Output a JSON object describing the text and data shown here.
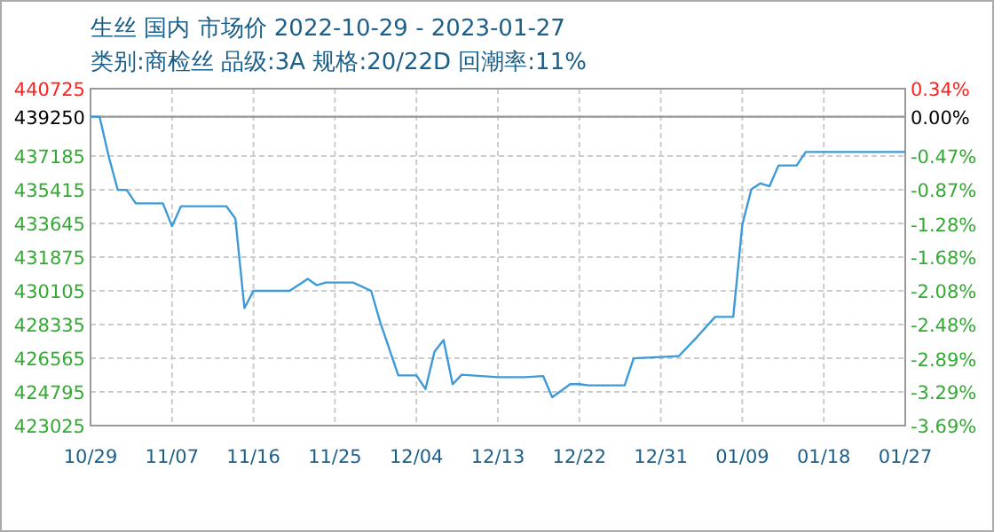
{
  "chart_data": {
    "type": "line",
    "title": "生丝 国内 市场价 2022-10-29 - 2023-01-27",
    "subtitle": "类别:商检丝 品级:3A 规格:20/22D 回潮率:11%",
    "x": [
      "2022-10-29",
      "2022-10-30",
      "2022-10-31",
      "2022-11-01",
      "2022-11-02",
      "2022-11-03",
      "2022-11-06",
      "2022-11-07",
      "2022-11-08",
      "2022-11-13",
      "2022-11-14",
      "2022-11-15",
      "2022-11-16",
      "2022-11-20",
      "2022-11-22",
      "2022-11-23",
      "2022-11-24",
      "2022-11-27",
      "2022-11-29",
      "2022-11-30",
      "2022-12-02",
      "2022-12-04",
      "2022-12-05",
      "2022-12-06",
      "2022-12-07",
      "2022-12-08",
      "2022-12-09",
      "2022-12-13",
      "2022-12-16",
      "2022-12-18",
      "2022-12-19",
      "2022-12-21",
      "2022-12-22",
      "2022-12-23",
      "2022-12-27",
      "2022-12-28",
      "2023-01-02",
      "2023-01-04",
      "2023-01-06",
      "2023-01-08",
      "2023-01-09",
      "2023-01-10",
      "2023-01-11",
      "2023-01-12",
      "2023-01-13",
      "2023-01-15",
      "2023-01-16",
      "2023-01-27"
    ],
    "series": [
      {
        "color": "#3d9ad8",
        "values": [
          439250,
          439250,
          437185,
          435415,
          435400,
          434700,
          434700,
          433500,
          434550,
          434550,
          433900,
          429200,
          430105,
          430105,
          430730,
          430400,
          430540,
          430540,
          430105,
          428460,
          425660,
          425660,
          424950,
          426910,
          427520,
          425200,
          425700,
          425570,
          425570,
          425630,
          424515,
          425200,
          425200,
          425140,
          425140,
          426560,
          426680,
          427680,
          428735,
          428735,
          433580,
          435440,
          435750,
          435600,
          436690,
          436690,
          437400,
          437400
        ]
      }
    ],
    "xlim": [
      "2022-10-29",
      "2023-01-27"
    ],
    "xticks": [
      {
        "value": "2022-10-29",
        "label": "10/29"
      },
      {
        "value": "2022-11-07",
        "label": "11/07"
      },
      {
        "value": "2022-11-16",
        "label": "11/16"
      },
      {
        "value": "2022-11-25",
        "label": "11/25"
      },
      {
        "value": "2022-12-04",
        "label": "12/04"
      },
      {
        "value": "2022-12-13",
        "label": "12/13"
      },
      {
        "value": "2022-12-22",
        "label": "12/22"
      },
      {
        "value": "2022-12-31",
        "label": "12/31"
      },
      {
        "value": "2023-01-09",
        "label": "01/09"
      },
      {
        "value": "2023-01-18",
        "label": "01/18"
      },
      {
        "value": "2023-01-27",
        "label": "01/27"
      }
    ],
    "ylim": [
      423025,
      440725
    ],
    "yticks": [
      423025,
      424795,
      426565,
      428335,
      430105,
      431875,
      433645,
      435415,
      437185,
      439250,
      440725
    ],
    "y2lim": [
      -3.69,
      0.34
    ],
    "y2ticks": [
      {
        "value": -3.69,
        "label": "-3.69%"
      },
      {
        "value": -3.29,
        "label": "-3.29%"
      },
      {
        "value": -2.89,
        "label": "-2.89%"
      },
      {
        "value": -2.48,
        "label": "-2.48%"
      },
      {
        "value": -2.08,
        "label": "-2.08%"
      },
      {
        "value": -1.68,
        "label": "-1.68%"
      },
      {
        "value": -1.28,
        "label": "-1.28%"
      },
      {
        "value": -0.87,
        "label": "-0.87%"
      },
      {
        "value": -0.47,
        "label": "-0.47%"
      },
      {
        "value": 0,
        "label": "0.00%"
      },
      {
        "value": 0.34,
        "label": "0.34%"
      }
    ],
    "ref_lines": [
      {
        "axis": "y",
        "value": 439250,
        "color": "#999999"
      }
    ],
    "grid": true,
    "marker": "none",
    "line_style": "solid"
  }
}
